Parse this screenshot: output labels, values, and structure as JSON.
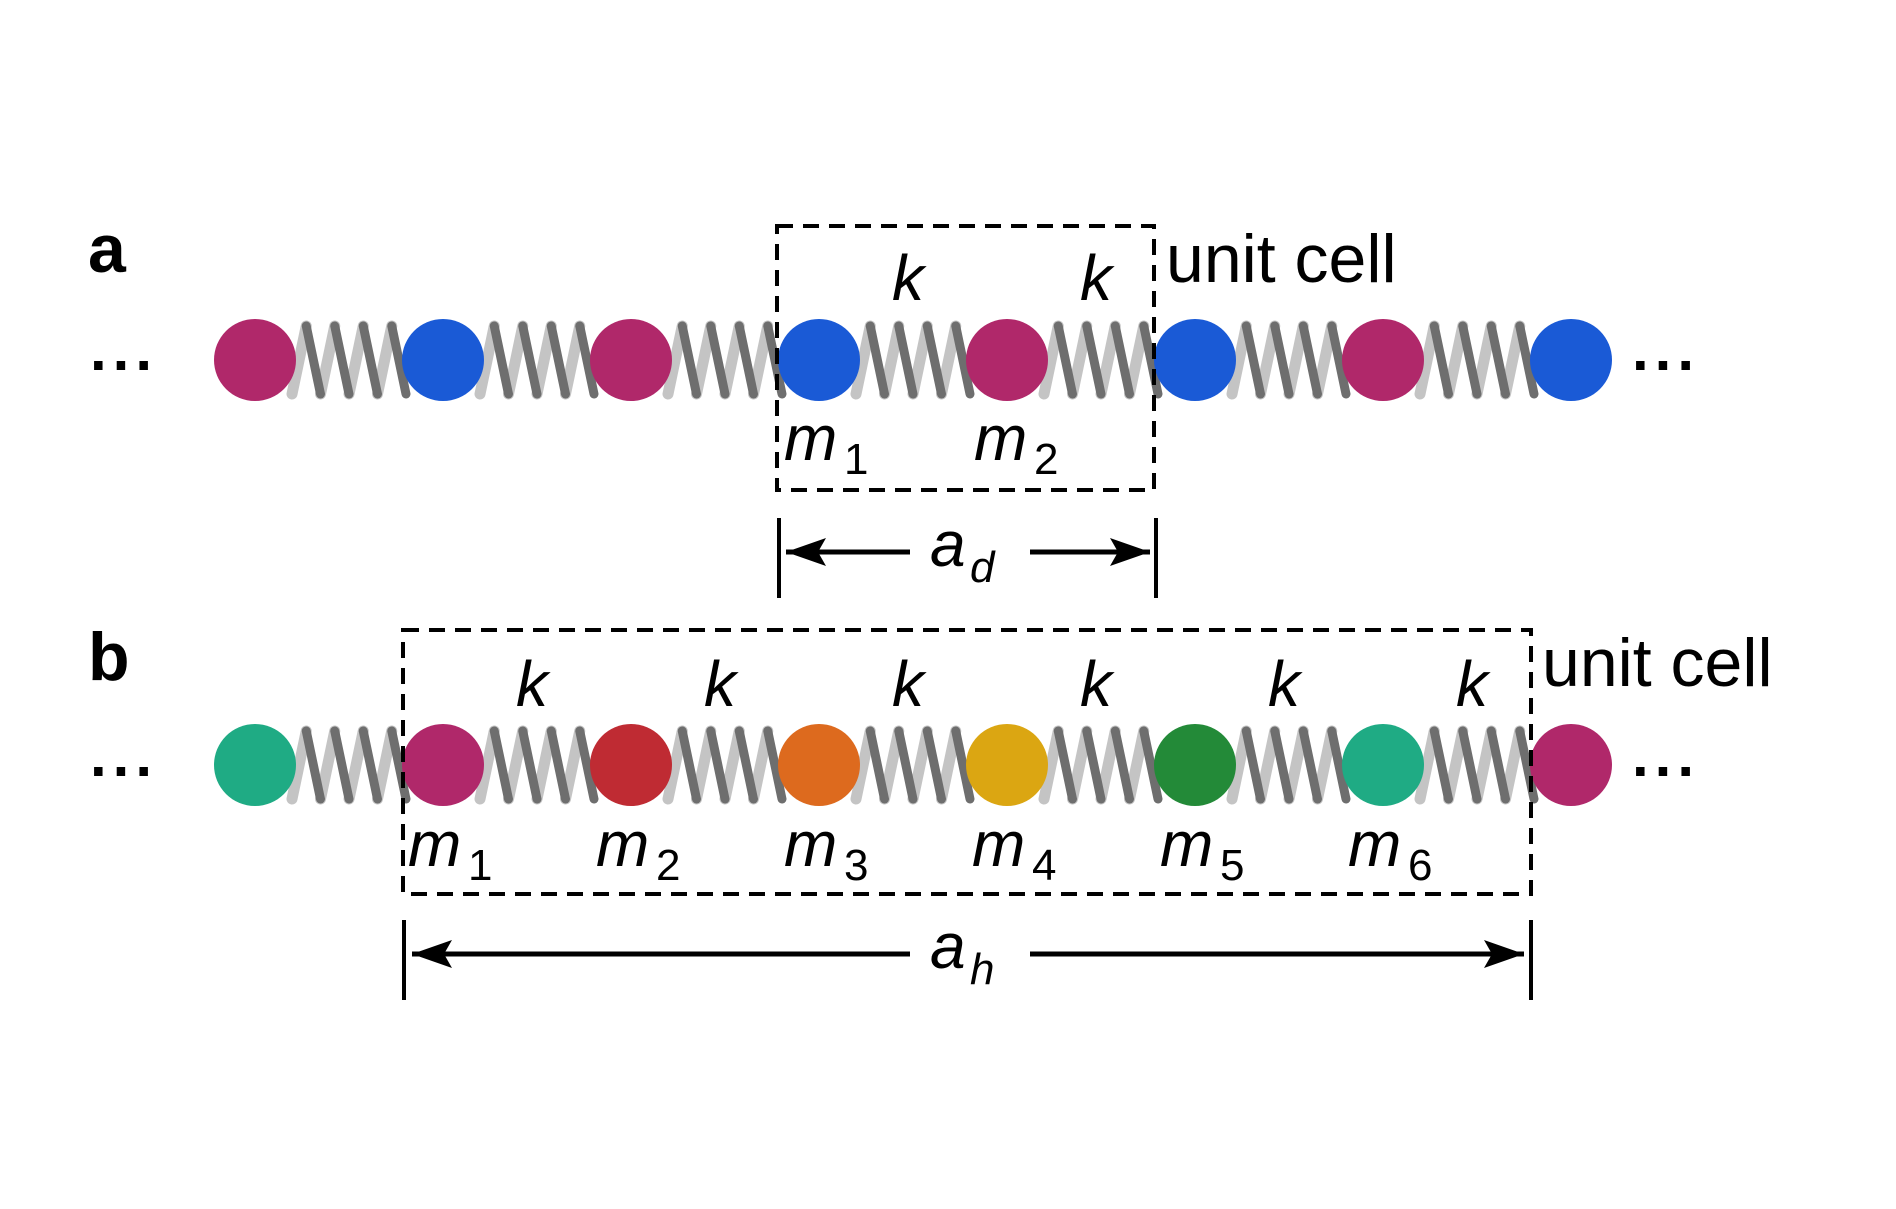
{
  "panels": [
    {
      "id": "a",
      "label": "a",
      "cell_label": "unit cell",
      "ellipsis": "...",
      "spring_label": "k",
      "masses_outside_left": [
        "magenta",
        "blue",
        "magenta"
      ],
      "masses_in_cell": [
        {
          "color": "blue",
          "symbol": "m",
          "subscript": "1"
        },
        {
          "color": "magenta",
          "symbol": "m",
          "subscript": "2"
        }
      ],
      "masses_outside_right": [
        "blue",
        "magenta",
        "blue"
      ],
      "period_symbol": "a",
      "period_subscript": "d"
    },
    {
      "id": "b",
      "label": "b",
      "cell_label": "unit cell",
      "ellipsis": "...",
      "spring_label": "k",
      "masses_outside_left": [
        "teal"
      ],
      "masses_in_cell": [
        {
          "color": "magenta",
          "symbol": "m",
          "subscript": "1"
        },
        {
          "color": "red",
          "symbol": "m",
          "subscript": "2"
        },
        {
          "color": "orange",
          "symbol": "m",
          "subscript": "3"
        },
        {
          "color": "gold",
          "symbol": "m",
          "subscript": "4"
        },
        {
          "color": "green",
          "symbol": "m",
          "subscript": "5"
        },
        {
          "color": "teal",
          "symbol": "m",
          "subscript": "6"
        }
      ],
      "masses_outside_right": [
        "magenta"
      ],
      "period_symbol": "a",
      "period_subscript": "h"
    }
  ],
  "colors": {
    "magenta": "#b0286a",
    "blue": "#1a5ad6",
    "red": "#bf2b33",
    "orange": "#dd6a1e",
    "gold": "#dba612",
    "green": "#238a38",
    "teal": "#1fab84",
    "spring_front": "#6e6e6e",
    "spring_back": "#c4c4c4",
    "line": "#000000"
  }
}
